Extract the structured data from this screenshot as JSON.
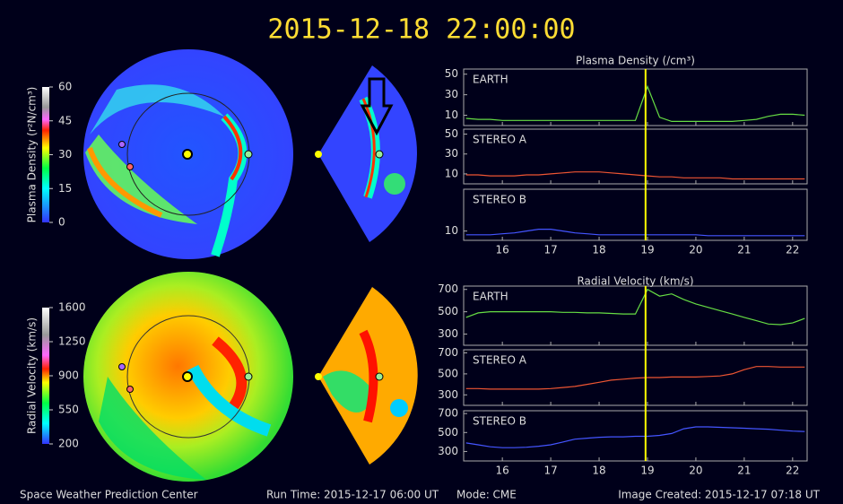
{
  "header": {
    "title": "2015-12-18 22:00:00"
  },
  "footer": {
    "center": "Space Weather Prediction Center",
    "run_time": "Run Time: 2015-12-17 06:00 UT",
    "mode": "Mode: CME",
    "created": "Image Created: 2015-12-17 07:18 UT"
  },
  "chart_data": [
    {
      "type": "colorbar",
      "label": "Plasma Density (r²N/cm³)",
      "lim": [
        0,
        60
      ],
      "ticks": [
        0,
        15,
        30,
        45,
        60
      ]
    },
    {
      "type": "colorbar",
      "label": "Radial Velocity (km/s)",
      "lim": [
        200,
        1600
      ],
      "ticks": [
        200,
        550,
        900,
        1250,
        1600
      ]
    },
    {
      "type": "line",
      "title": "Plasma Density (/cm³)",
      "xlim": [
        15.2,
        22.3
      ],
      "xticks": [
        16,
        17,
        18,
        19,
        20,
        21,
        22
      ],
      "marker_x": 18.96,
      "marker_color": "#ffff00",
      "x": [
        15.25,
        15.5,
        15.75,
        16,
        16.25,
        16.5,
        16.75,
        17,
        17.25,
        17.5,
        17.75,
        18,
        18.25,
        18.5,
        18.75,
        19,
        19.25,
        19.5,
        19.75,
        20,
        20.25,
        20.5,
        20.75,
        21,
        21.25,
        21.5,
        21.75,
        22,
        22.25
      ],
      "series": [
        {
          "name": "EARTH",
          "color": "#66dd44",
          "ylim": [
            0,
            55
          ],
          "yticks": [
            10,
            30,
            50
          ],
          "values": [
            7,
            6,
            6,
            5,
            5,
            5,
            5,
            5,
            5,
            5,
            5,
            5,
            5,
            5,
            5,
            38,
            8,
            4,
            4,
            4,
            4,
            4,
            4,
            5,
            6,
            9,
            11,
            11,
            10
          ]
        },
        {
          "name": "STEREO A",
          "color": "#ee5533",
          "ylim": [
            0,
            55
          ],
          "yticks": [
            10,
            30,
            50
          ],
          "values": [
            9,
            9,
            8,
            8,
            8,
            9,
            9,
            10,
            11,
            12,
            12,
            12,
            11,
            10,
            9,
            8,
            7,
            7,
            6,
            6,
            6,
            6,
            5,
            5,
            5,
            5,
            5,
            5,
            5
          ]
        },
        {
          "name": "STEREO B",
          "color": "#4455ff",
          "ylim": [
            0,
            55
          ],
          "yticks": [
            10
          ],
          "values": [
            6,
            6,
            6,
            7,
            8,
            10,
            12,
            12,
            10,
            8,
            7,
            6,
            6,
            6,
            6,
            6,
            6,
            6,
            6,
            6,
            5,
            5,
            5,
            5,
            5,
            5,
            5,
            5,
            5
          ]
        }
      ]
    },
    {
      "type": "line",
      "title": "Radial Velocity (km/s)",
      "xlim": [
        15.2,
        22.3
      ],
      "xticks": [
        16,
        17,
        18,
        19,
        20,
        21,
        22
      ],
      "marker_x": 18.96,
      "marker_color": "#ffff00",
      "x": [
        15.25,
        15.5,
        15.75,
        16,
        16.25,
        16.5,
        16.75,
        17,
        17.25,
        17.5,
        17.75,
        18,
        18.25,
        18.5,
        18.75,
        19,
        19.25,
        19.5,
        19.75,
        20,
        20.25,
        20.5,
        20.75,
        21,
        21.25,
        21.5,
        21.75,
        22,
        22.25
      ],
      "series": [
        {
          "name": "EARTH",
          "color": "#66dd44",
          "ylim": [
            200,
            730
          ],
          "yticks": [
            300,
            500,
            700
          ],
          "values": [
            450,
            490,
            500,
            500,
            500,
            500,
            500,
            500,
            495,
            495,
            490,
            490,
            485,
            480,
            480,
            700,
            640,
            660,
            610,
            570,
            540,
            510,
            480,
            450,
            420,
            390,
            385,
            400,
            440
          ]
        },
        {
          "name": "STEREO A",
          "color": "#ee5533",
          "ylim": [
            200,
            730
          ],
          "yticks": [
            300,
            500,
            700
          ],
          "values": [
            360,
            360,
            355,
            355,
            355,
            355,
            355,
            360,
            370,
            380,
            400,
            420,
            440,
            450,
            460,
            465,
            465,
            470,
            470,
            470,
            475,
            480,
            500,
            540,
            570,
            570,
            565,
            565,
            565
          ]
        },
        {
          "name": "STEREO B",
          "color": "#4455ff",
          "ylim": [
            200,
            730
          ],
          "yticks": [
            300,
            500,
            700
          ],
          "values": [
            390,
            370,
            350,
            340,
            340,
            345,
            355,
            370,
            400,
            430,
            440,
            450,
            455,
            455,
            460,
            460,
            470,
            490,
            540,
            560,
            560,
            555,
            550,
            545,
            540,
            535,
            525,
            515,
            510
          ]
        }
      ]
    }
  ]
}
